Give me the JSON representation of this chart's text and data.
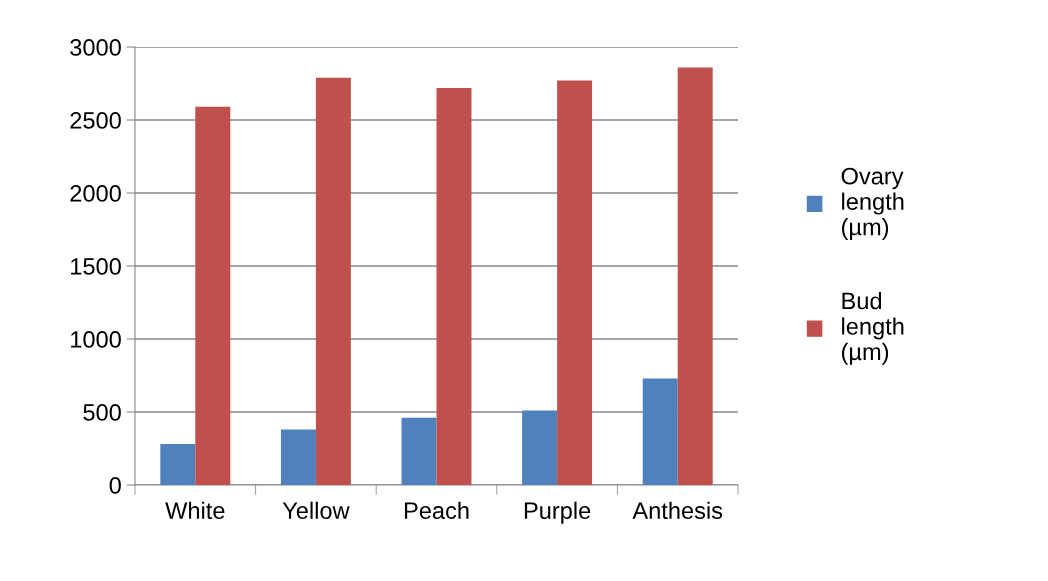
{
  "chart_data": {
    "type": "bar",
    "categories": [
      "White",
      "Yellow",
      "Peach",
      "Purple",
      "Anthesis"
    ],
    "series": [
      {
        "name": "Ovary length (µm)",
        "color": "#4f81bd",
        "values": [
          280,
          380,
          460,
          510,
          730
        ]
      },
      {
        "name": "Bud length (µm)",
        "color": "#c0504d",
        "values": [
          2590,
          2790,
          2720,
          2770,
          2860
        ]
      }
    ],
    "ylim": [
      0,
      3000
    ],
    "yticks": [
      0,
      500,
      1000,
      1500,
      2000,
      2500,
      3000
    ],
    "grid": "y",
    "legend": "right"
  }
}
